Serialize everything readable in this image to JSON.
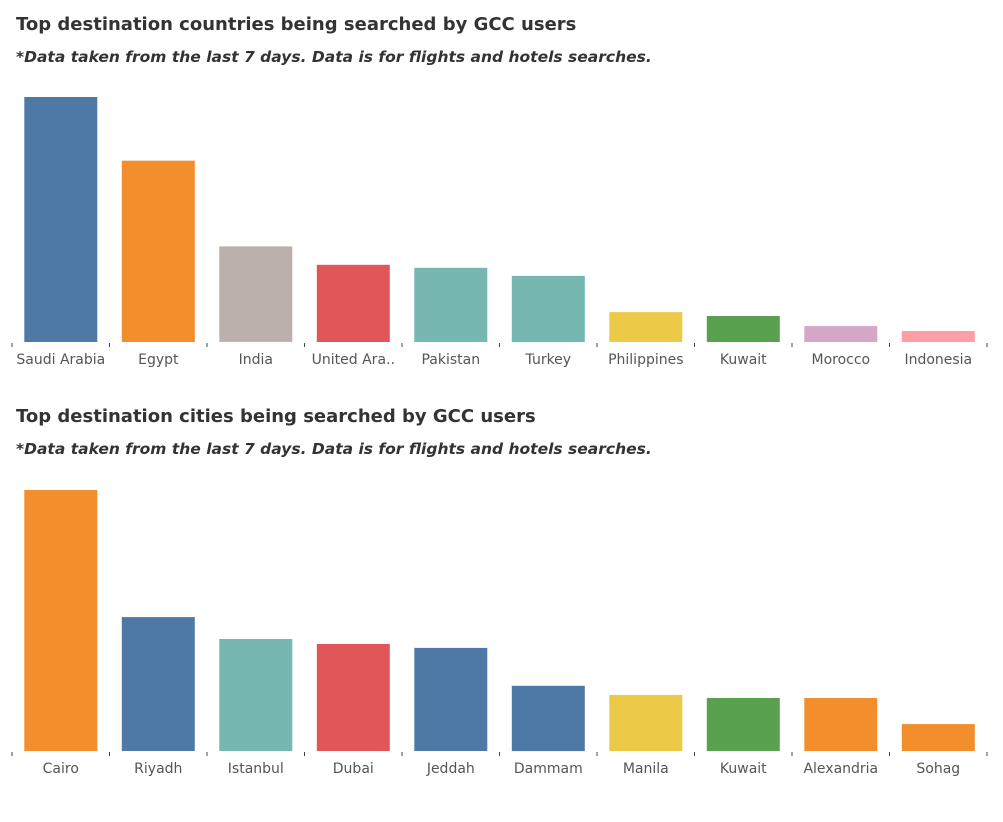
{
  "chart_data": [
    {
      "type": "bar",
      "title": "Top destination countries being searched by GCC users",
      "subtitle": "*Data taken from the last 7 days. Data is for flights and hotels searches.",
      "categories": [
        "Saudi Arabia",
        "Egypt",
        "India",
        "United Ara..",
        "Pakistan",
        "Turkey",
        "Philippines",
        "Kuwait",
        "Morocco",
        "Indonesia"
      ],
      "values": [
        100,
        74,
        39,
        31.5,
        30.3,
        27,
        12.2,
        10.6,
        6.5,
        4.5
      ],
      "colors": [
        "#4e79a7",
        "#f28e2b",
        "#bab0ac",
        "#e15759",
        "#76b7b2",
        "#76b7b2",
        "#edc948",
        "#59a14f",
        "#d4a6c8",
        "#ff9da7"
      ],
      "xlabel": "",
      "ylabel": "",
      "ylim": [
        0,
        100
      ],
      "grid": false,
      "legend": "none"
    },
    {
      "type": "bar",
      "title": "Top destination cities being searched by GCC users",
      "subtitle": "*Data taken from the last 7 days. Data is for flights and hotels searches.",
      "categories": [
        "Cairo",
        "Riyadh",
        "Istanbul",
        "Dubai",
        "Jeddah",
        "Dammam",
        "Manila",
        "Kuwait",
        "Alexandria",
        "Sohag"
      ],
      "values": [
        100,
        51.3,
        42.9,
        41,
        39.5,
        25,
        21.5,
        20.3,
        20.3,
        10.3
      ],
      "colors": [
        "#f28e2b",
        "#4e79a7",
        "#76b7b2",
        "#e15759",
        "#4e79a7",
        "#4e79a7",
        "#edc948",
        "#59a14f",
        "#f28e2b",
        "#f28e2b"
      ],
      "xlabel": "",
      "ylabel": "",
      "ylim": [
        0,
        100
      ],
      "grid": false,
      "legend": "none"
    }
  ]
}
